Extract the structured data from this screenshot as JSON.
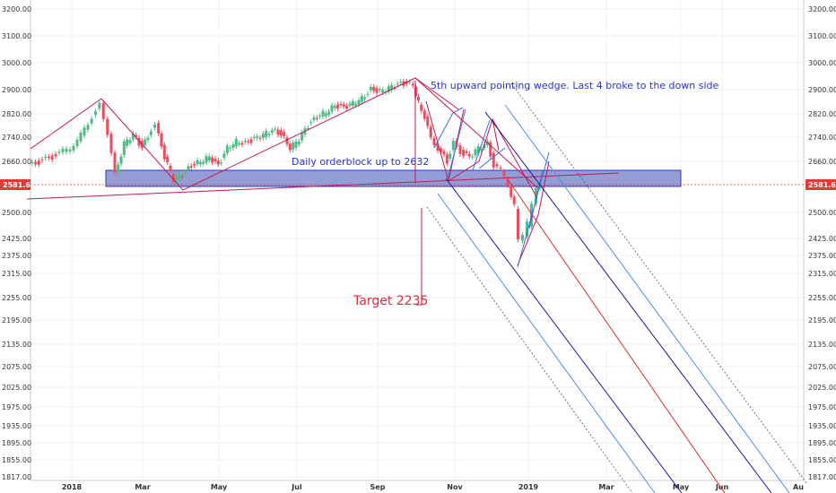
{
  "chart_data": {
    "type": "candlestick",
    "yticks": [
      "3200.00",
      "3100.00",
      "3000.00",
      "2900.00",
      "2820.00",
      "2740.00",
      "2660.00",
      "2581.68",
      "2500.00",
      "2425.00",
      "2375.00",
      "2315.00",
      "2255.00",
      "2195.00",
      "2135.00",
      "2075.00",
      "2025.00",
      "1975.00",
      "1935.00",
      "1895.00",
      "1855.00",
      "1817.00"
    ],
    "xticks": [
      "2018",
      "Mar",
      "May",
      "Jul",
      "Sep",
      "Nov",
      "2019",
      "Mar",
      "May",
      "Jun",
      "Au"
    ],
    "current_price": 2581.68,
    "colors": {
      "up": "#53b987",
      "down": "#eb4d5c",
      "pink": "#c2185b",
      "navy": "#1a1a8c",
      "lightblue": "#4a90e2",
      "red": "#d32f2f",
      "gray": "#555555",
      "orderblock_fill": "#7b86c9",
      "price_tag": "#e53935"
    },
    "annotations": {
      "wedge": "5th upward pointing wedge. Last 4 broke to the down side",
      "orderblock": "Daily orderblock up to 2632",
      "target": "Target 2235"
    }
  }
}
